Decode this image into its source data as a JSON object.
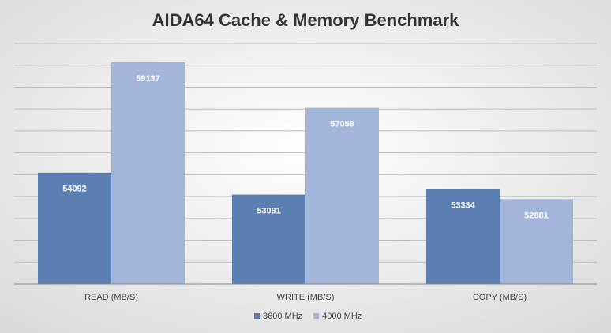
{
  "chart_data": {
    "type": "bar",
    "title": "AIDA64 Cache & Memory Benchmark",
    "categories": [
      "READ (MB/S)",
      "WRITE (MB/S)",
      "COPY (MB/S)"
    ],
    "series": [
      {
        "name": "3600 MHz",
        "color": "#5b7fb1",
        "values": [
          54092,
          53091,
          53334
        ]
      },
      {
        "name": "4000 MHz",
        "color": "#a3b6da",
        "values": [
          59137,
          57058,
          52881
        ]
      }
    ],
    "ylim": [
      49000,
      60000
    ],
    "yticks": [
      49000,
      50000,
      51000,
      52000,
      53000,
      54000,
      55000,
      56000,
      57000,
      58000,
      59000,
      60000
    ],
    "grid": true,
    "legend": "bottom"
  }
}
